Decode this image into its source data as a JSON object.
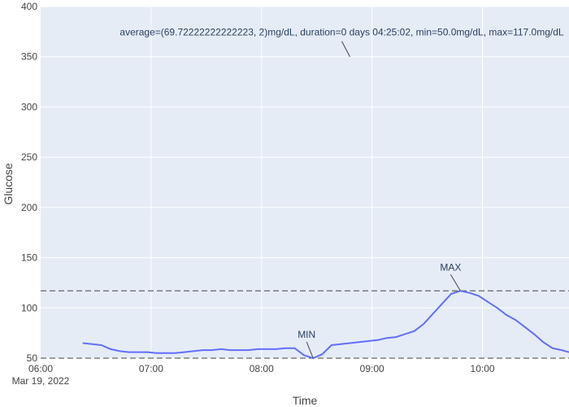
{
  "chart_data": {
    "type": "line",
    "xlabel": "Time",
    "ylabel": "Glucose",
    "x_tick_labels": [
      "06:00",
      "07:00",
      "08:00",
      "09:00",
      "10:00"
    ],
    "x_date_label": "Mar 19, 2022",
    "y_ticks": [
      50,
      100,
      150,
      200,
      250,
      300,
      350,
      400
    ],
    "xlim": [
      "06:00",
      "10:47"
    ],
    "ylim": [
      50,
      400
    ],
    "grid": true,
    "series": [
      {
        "x": [
          "06:23",
          "06:33",
          "06:38",
          "06:43",
          "06:48",
          "06:53",
          "06:58",
          "07:03",
          "07:08",
          "07:13",
          "07:18",
          "07:23",
          "07:28",
          "07:33",
          "07:38",
          "07:43",
          "07:48",
          "07:53",
          "07:58",
          "08:03",
          "08:08",
          "08:13",
          "08:18",
          "08:23",
          "08:28",
          "08:33",
          "08:38",
          "08:43",
          "08:48",
          "09:03",
          "09:08",
          "09:13",
          "09:18",
          "09:23",
          "09:28",
          "09:33",
          "09:38",
          "09:43",
          "09:48",
          "09:53",
          "09:58",
          "10:03",
          "10:08",
          "10:13",
          "10:18",
          "10:23",
          "10:28",
          "10:33",
          "10:38",
          "10:43",
          "10:47"
        ],
        "values": [
          65,
          63,
          59,
          57,
          56,
          56,
          56,
          55,
          55,
          55,
          56,
          57,
          58,
          58,
          59,
          58,
          58,
          58,
          59,
          59,
          59,
          60,
          60,
          53,
          50,
          54,
          63,
          64,
          65,
          68,
          70,
          71,
          74,
          77,
          84,
          94,
          104,
          114,
          117,
          115,
          112,
          106,
          100,
          93,
          88,
          81,
          74,
          66,
          60,
          58,
          56
        ],
        "color": "#636efa"
      }
    ],
    "reference_lines": [
      {
        "y": 50,
        "style": "dashed"
      },
      {
        "y": 117,
        "style": "dashed"
      }
    ],
    "annotations": [
      {
        "text": "average=(69.72222222222223, 2)mg/dL, duration=0 days 04:25:02, min=50.0mg/dL, max=117.0mg/dL",
        "x": "08:48",
        "y": 350
      },
      {
        "text": "MIN",
        "x": "08:28",
        "y": 50
      },
      {
        "text": "MAX",
        "x": "09:48",
        "y": 117
      }
    ]
  },
  "colors": {
    "plot_background": "#e5ecf6",
    "grid": "#ffffff",
    "line": "#636efa",
    "reference": "#444444"
  }
}
